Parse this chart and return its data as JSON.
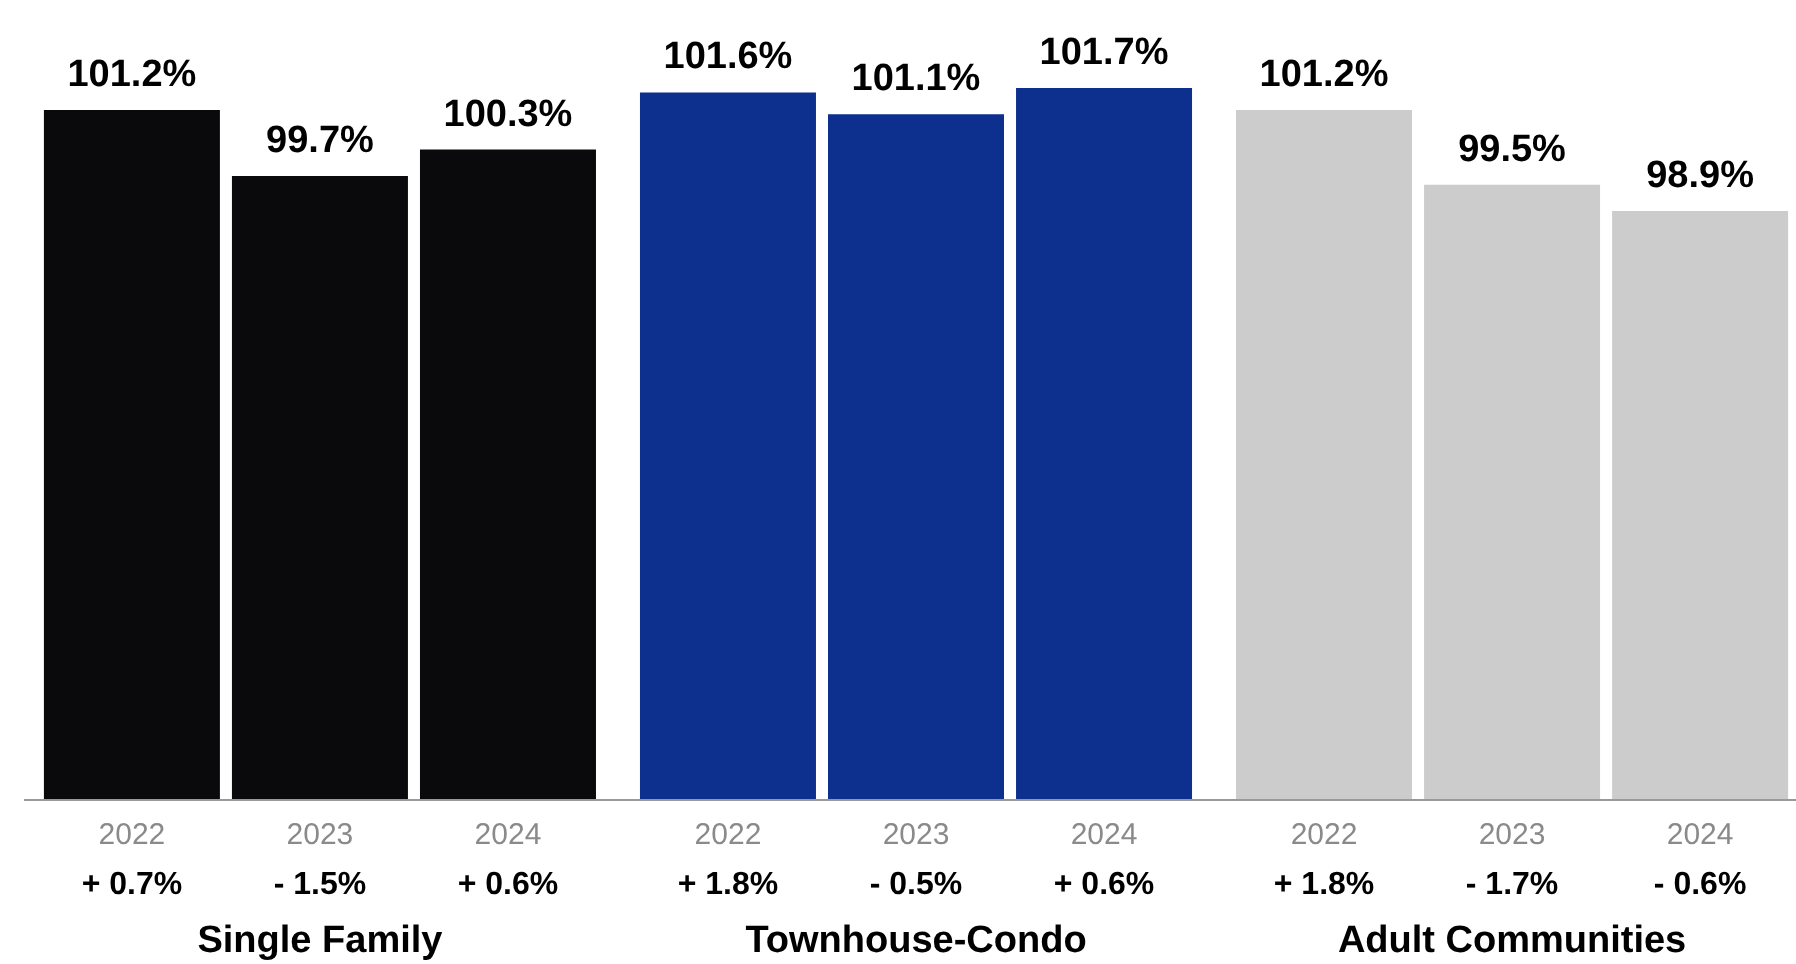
{
  "chart_data": {
    "type": "bar",
    "categories": [
      "2022",
      "2023",
      "2024",
      "2022",
      "2023",
      "2024",
      "2022",
      "2023",
      "2024"
    ],
    "values": [
      101.2,
      99.7,
      100.3,
      101.6,
      101.1,
      101.7,
      101.2,
      99.5,
      98.9
    ],
    "value_labels": [
      "101.2%",
      "99.7%",
      "100.3%",
      "101.6%",
      "101.1%",
      "101.7%",
      "101.2%",
      "99.5%",
      "98.9%"
    ],
    "colors": [
      "#0a090c",
      "#0a090c",
      "#0a090c",
      "#0d2f8e",
      "#0d2f8e",
      "#0d2f8e",
      "#cccccc",
      "#cccccc",
      "#cccccc"
    ],
    "ylim": [
      85.5,
      101.7
    ],
    "tick_labels": "x",
    "grid": false,
    "legend": false,
    "annotations": [
      "+ 0.7%",
      "- 1.5%",
      "+ 0.6%",
      "+ 1.8%",
      "- 0.5%",
      "+ 0.6%",
      "+ 1.8%",
      "- 1.7%",
      "- 0.6%",
      "Single Family",
      "Townhouse-Condo",
      "Adult Communities"
    ]
  }
}
